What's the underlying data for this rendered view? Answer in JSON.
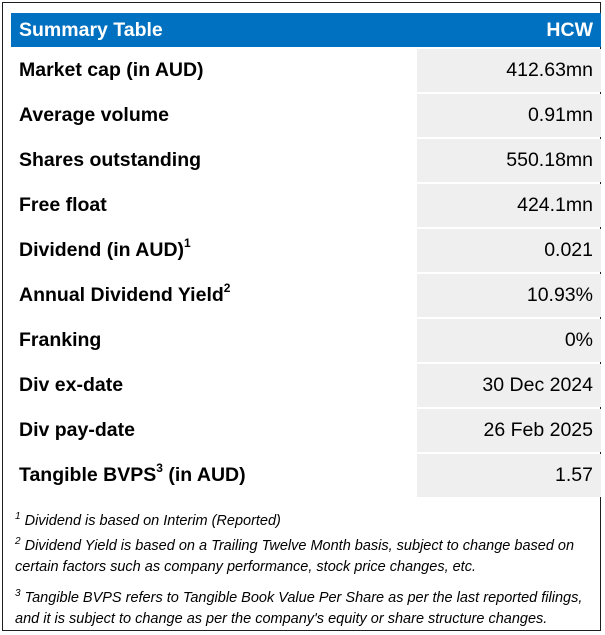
{
  "table": {
    "title": "Summary Table",
    "ticker": "HCW",
    "rows": [
      {
        "label": "Market cap (in AUD)",
        "sup": "",
        "label_suffix": "",
        "value": "412.63mn"
      },
      {
        "label": "Average volume",
        "sup": "",
        "label_suffix": "",
        "value": "0.91mn"
      },
      {
        "label": "Shares outstanding",
        "sup": "",
        "label_suffix": "",
        "value": "550.18mn"
      },
      {
        "label": "Free float",
        "sup": "",
        "label_suffix": "",
        "value": "424.1mn"
      },
      {
        "label": "Dividend (in AUD)",
        "sup": "1",
        "label_suffix": "",
        "value": "0.021"
      },
      {
        "label": "Annual Dividend Yield",
        "sup": "2",
        "label_suffix": "",
        "value": "10.93%"
      },
      {
        "label": "Franking",
        "sup": "",
        "label_suffix": "",
        "value": "0%"
      },
      {
        "label": "Div ex-date",
        "sup": "",
        "label_suffix": "",
        "value": "30 Dec 2024"
      },
      {
        "label": "Div pay-date",
        "sup": "",
        "label_suffix": "",
        "value": "26 Feb 2025"
      },
      {
        "label": "Tangible BVPS",
        "sup": "3",
        "label_suffix": " (in AUD)",
        "value": "1.57"
      }
    ]
  },
  "footnotes": [
    {
      "num": "1",
      "text": "Dividend is based on Interim (Reported)"
    },
    {
      "num": "2",
      "text": "Dividend Yield is based on a Trailing Twelve Month basis, subject to change based on certain factors such as company performance, stock price changes, etc."
    },
    {
      "num": "3",
      "text": "Tangible BVPS refers to Tangible Book Value Per Share as per the last reported filings, and it is subject to change as per the company's equity or share structure changes."
    }
  ],
  "colors": {
    "header": "#0070c0",
    "value_cell": "#efefef"
  }
}
